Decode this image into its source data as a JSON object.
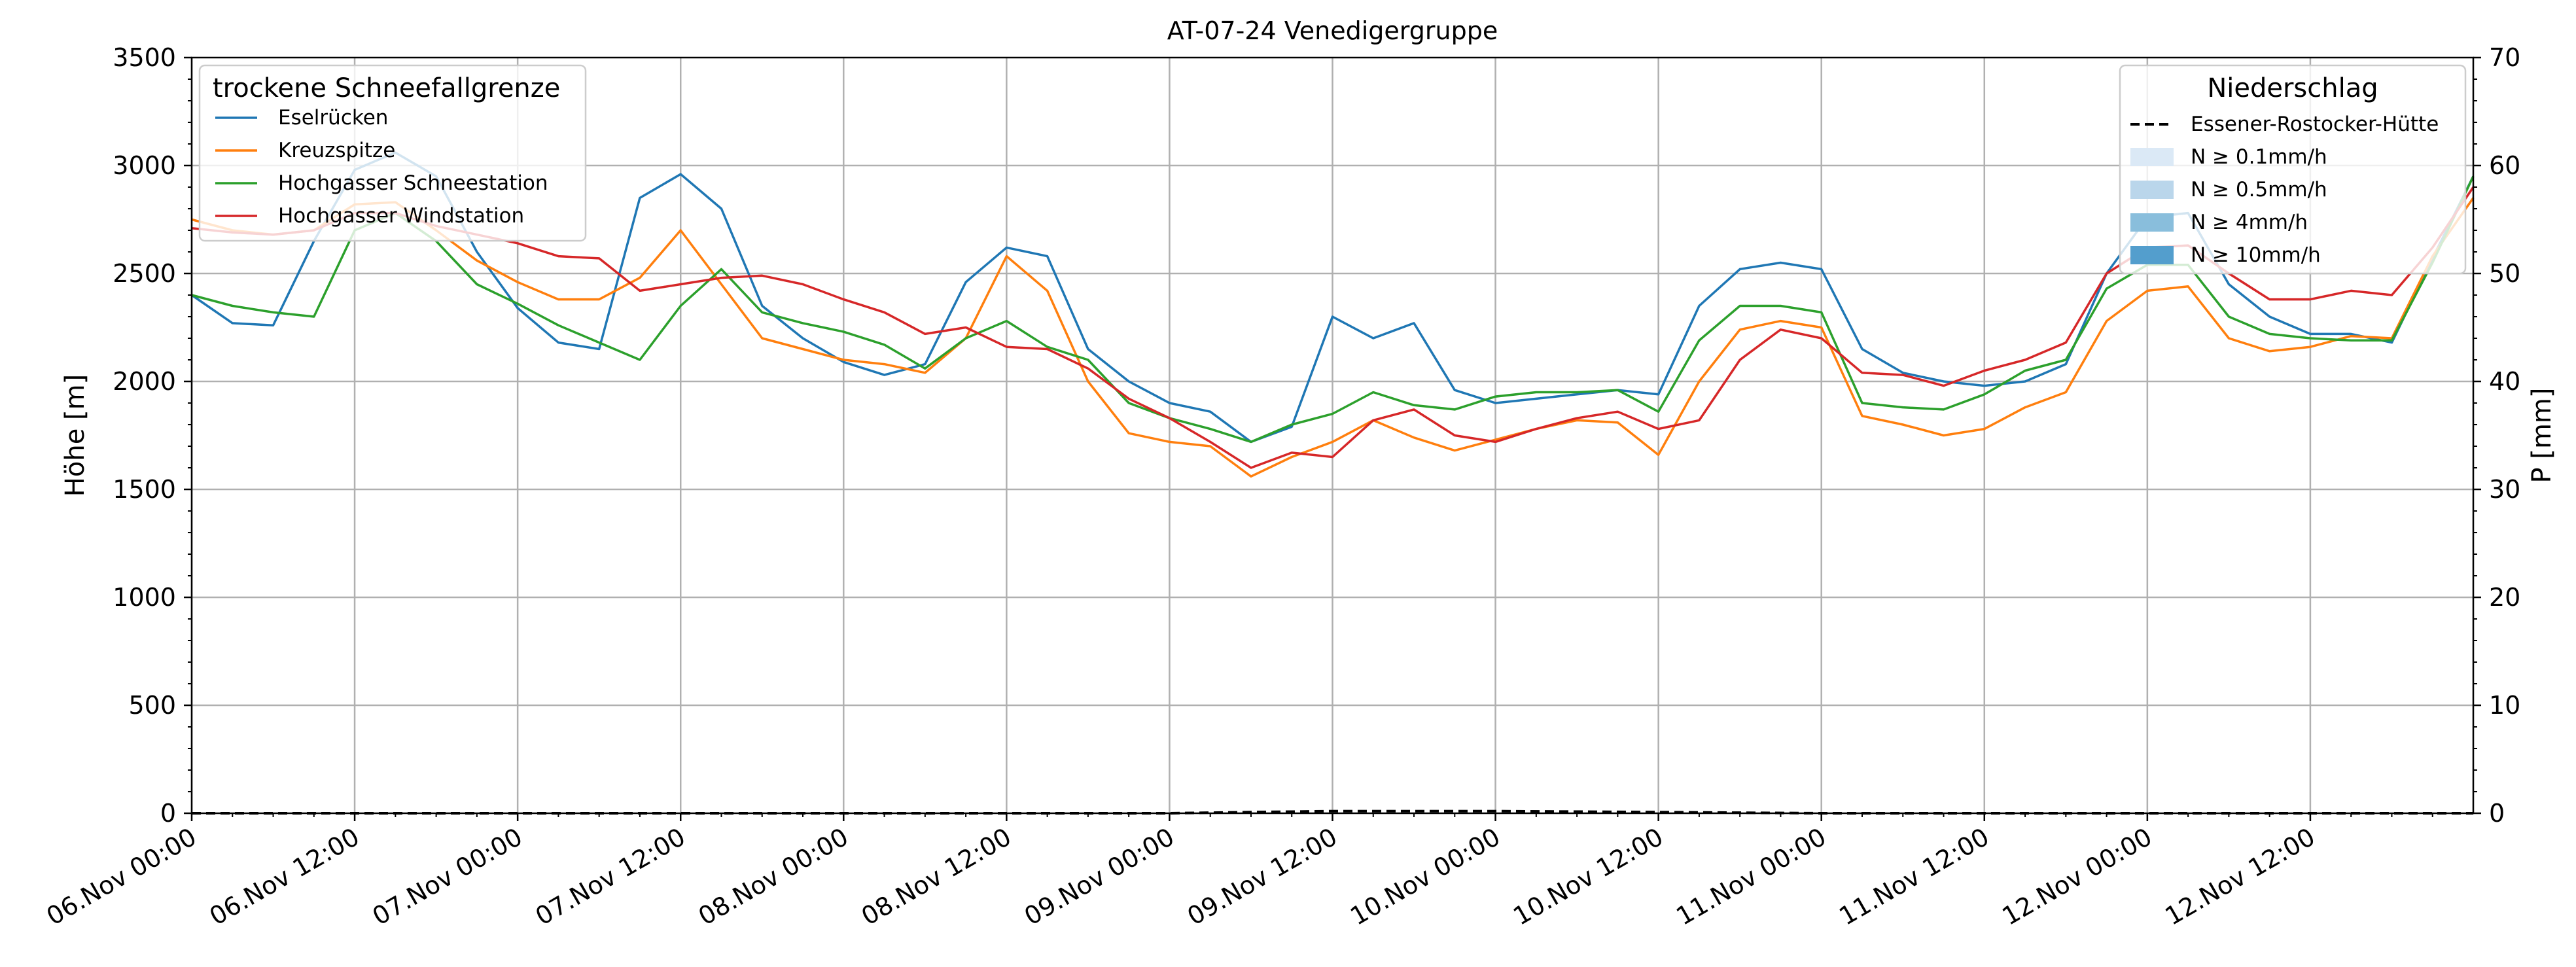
{
  "chart_data": {
    "type": "line",
    "title": "AT-07-24 Venedigergruppe",
    "ylabel": "Höhe [m]",
    "y2label": "P [mm]",
    "ylim": [
      0,
      3500
    ],
    "y2lim": [
      0,
      70
    ],
    "xlim": [
      "2024-11-06T00:00",
      "2024-11-13T00:00"
    ],
    "yticks": [
      0,
      500,
      1000,
      1500,
      2000,
      2500,
      3000,
      3500
    ],
    "y2ticks": [
      0,
      10,
      20,
      30,
      40,
      50,
      60,
      70
    ],
    "xticks": [
      {
        "at": "2024-11-06T00:00",
        "label": "06.Nov 00:00"
      },
      {
        "at": "2024-11-06T12:00",
        "label": "06.Nov 12:00"
      },
      {
        "at": "2024-11-07T00:00",
        "label": "07.Nov 00:00"
      },
      {
        "at": "2024-11-07T12:00",
        "label": "07.Nov 12:00"
      },
      {
        "at": "2024-11-08T00:00",
        "label": "08.Nov 00:00"
      },
      {
        "at": "2024-11-08T12:00",
        "label": "08.Nov 12:00"
      },
      {
        "at": "2024-11-09T00:00",
        "label": "09.Nov 00:00"
      },
      {
        "at": "2024-11-09T12:00",
        "label": "09.Nov 12:00"
      },
      {
        "at": "2024-11-10T00:00",
        "label": "10.Nov 00:00"
      },
      {
        "at": "2024-11-10T12:00",
        "label": "10.Nov 12:00"
      },
      {
        "at": "2024-11-11T00:00",
        "label": "11.Nov 00:00"
      },
      {
        "at": "2024-11-11T12:00",
        "label": "11.Nov 12:00"
      },
      {
        "at": "2024-11-12T00:00",
        "label": "12.Nov 00:00"
      },
      {
        "at": "2024-11-12T12:00",
        "label": "12.Nov 12:00"
      }
    ],
    "grid": true,
    "legend_left": {
      "title": "trockene Schneefallgrenze",
      "placement": "top-left"
    },
    "legend_right": {
      "title": "Niederschlag",
      "placement": "top-right",
      "items": [
        {
          "label": "Essener-Rostocker-Hütte",
          "style": "dashed-line",
          "color": "#000000"
        },
        {
          "label": "N ≥ 0.1mm/h",
          "style": "patch",
          "color": "#dbe9f6"
        },
        {
          "label": "N ≥ 0.5mm/h",
          "style": "patch",
          "color": "#bad6eb"
        },
        {
          "label": "N ≥ 4mm/h",
          "style": "patch",
          "color": "#89bedc"
        },
        {
          "label": "N ≥ 10mm/h",
          "style": "patch",
          "color": "#539ecd"
        }
      ]
    },
    "series": [
      {
        "name": "Eselrücken",
        "color": "#1f77b4",
        "x": [
          "2024-11-06T00:00",
          "2024-11-06T03:00",
          "2024-11-06T06:00",
          "2024-11-06T09:00",
          "2024-11-06T12:00",
          "2024-11-06T15:00",
          "2024-11-06T18:00",
          "2024-11-06T21:00",
          "2024-11-07T00:00",
          "2024-11-07T03:00",
          "2024-11-07T06:00",
          "2024-11-07T09:00",
          "2024-11-07T12:00",
          "2024-11-07T15:00",
          "2024-11-07T18:00",
          "2024-11-07T21:00",
          "2024-11-08T00:00",
          "2024-11-08T03:00",
          "2024-11-08T06:00",
          "2024-11-08T09:00",
          "2024-11-08T12:00",
          "2024-11-08T15:00",
          "2024-11-08T18:00",
          "2024-11-08T21:00",
          "2024-11-09T00:00",
          "2024-11-09T03:00",
          "2024-11-09T06:00",
          "2024-11-09T09:00",
          "2024-11-09T12:00",
          "2024-11-09T15:00",
          "2024-11-09T18:00",
          "2024-11-09T21:00",
          "2024-11-10T00:00",
          "2024-11-10T03:00",
          "2024-11-10T06:00",
          "2024-11-10T09:00",
          "2024-11-10T12:00",
          "2024-11-10T15:00",
          "2024-11-10T18:00",
          "2024-11-10T21:00",
          "2024-11-11T00:00",
          "2024-11-11T03:00",
          "2024-11-11T06:00",
          "2024-11-11T09:00",
          "2024-11-11T12:00",
          "2024-11-11T15:00",
          "2024-11-11T18:00",
          "2024-11-11T21:00",
          "2024-11-12T00:00",
          "2024-11-12T03:00",
          "2024-11-12T06:00",
          "2024-11-12T09:00",
          "2024-11-12T12:00",
          "2024-11-12T15:00",
          "2024-11-12T18:00",
          "2024-11-12T21:00",
          "2024-11-13T00:00"
        ],
        "values": [
          2400,
          2270,
          2260,
          2650,
          2980,
          3060,
          2950,
          2600,
          2340,
          2180,
          2150,
          2850,
          2960,
          2800,
          2350,
          2200,
          2090,
          2030,
          2080,
          2460,
          2620,
          2580,
          2150,
          2000,
          1900,
          1860,
          1720,
          1790,
          2300,
          2200,
          2270,
          1960,
          1900,
          1920,
          1940,
          1960,
          1940,
          2350,
          2520,
          2550,
          2520,
          2150,
          2040,
          2000,
          1980,
          2000,
          2080,
          2500,
          2760,
          2780,
          2450,
          2300,
          2220,
          2220,
          2180,
          2570,
          2950
        ]
      },
      {
        "name": "Kreuzspitze",
        "color": "#ff7f0e",
        "x": [
          "2024-11-06T00:00",
          "2024-11-06T03:00",
          "2024-11-06T06:00",
          "2024-11-06T09:00",
          "2024-11-06T12:00",
          "2024-11-06T15:00",
          "2024-11-06T18:00",
          "2024-11-06T21:00",
          "2024-11-07T00:00",
          "2024-11-07T03:00",
          "2024-11-07T06:00",
          "2024-11-07T09:00",
          "2024-11-07T12:00",
          "2024-11-07T15:00",
          "2024-11-07T18:00",
          "2024-11-07T21:00",
          "2024-11-08T00:00",
          "2024-11-08T03:00",
          "2024-11-08T06:00",
          "2024-11-08T09:00",
          "2024-11-08T12:00",
          "2024-11-08T15:00",
          "2024-11-08T18:00",
          "2024-11-08T21:00",
          "2024-11-09T00:00",
          "2024-11-09T03:00",
          "2024-11-09T06:00",
          "2024-11-09T09:00",
          "2024-11-09T12:00",
          "2024-11-09T15:00",
          "2024-11-09T18:00",
          "2024-11-09T21:00",
          "2024-11-10T00:00",
          "2024-11-10T03:00",
          "2024-11-10T06:00",
          "2024-11-10T09:00",
          "2024-11-10T12:00",
          "2024-11-10T15:00",
          "2024-11-10T18:00",
          "2024-11-10T21:00",
          "2024-11-11T00:00",
          "2024-11-11T03:00",
          "2024-11-11T06:00",
          "2024-11-11T09:00",
          "2024-11-11T12:00",
          "2024-11-11T15:00",
          "2024-11-11T18:00",
          "2024-11-11T21:00",
          "2024-11-12T00:00",
          "2024-11-12T03:00",
          "2024-11-12T06:00",
          "2024-11-12T09:00",
          "2024-11-12T12:00",
          "2024-11-12T15:00",
          "2024-11-12T18:00",
          "2024-11-12T21:00",
          "2024-11-13T00:00"
        ],
        "values": [
          2750,
          2700,
          2680,
          2700,
          2820,
          2830,
          2700,
          2560,
          2460,
          2380,
          2380,
          2480,
          2700,
          2450,
          2200,
          2150,
          2100,
          2080,
          2040,
          2200,
          2580,
          2420,
          2000,
          1760,
          1720,
          1700,
          1560,
          1650,
          1720,
          1820,
          1740,
          1680,
          1730,
          1780,
          1820,
          1810,
          1660,
          2000,
          2240,
          2280,
          2250,
          1840,
          1800,
          1750,
          1780,
          1880,
          1950,
          2280,
          2420,
          2440,
          2200,
          2140,
          2160,
          2210,
          2200,
          2580,
          2850
        ]
      },
      {
        "name": "Hochgasser Schneestation",
        "color": "#2ca02c",
        "x": [
          "2024-11-06T00:00",
          "2024-11-06T03:00",
          "2024-11-06T06:00",
          "2024-11-06T09:00",
          "2024-11-06T12:00",
          "2024-11-06T15:00",
          "2024-11-06T18:00",
          "2024-11-06T21:00",
          "2024-11-07T00:00",
          "2024-11-07T03:00",
          "2024-11-07T06:00",
          "2024-11-07T09:00",
          "2024-11-07T12:00",
          "2024-11-07T15:00",
          "2024-11-07T18:00",
          "2024-11-07T21:00",
          "2024-11-08T00:00",
          "2024-11-08T03:00",
          "2024-11-08T06:00",
          "2024-11-08T09:00",
          "2024-11-08T12:00",
          "2024-11-08T15:00",
          "2024-11-08T18:00",
          "2024-11-08T21:00",
          "2024-11-09T00:00",
          "2024-11-09T03:00",
          "2024-11-09T06:00",
          "2024-11-09T09:00",
          "2024-11-09T12:00",
          "2024-11-09T15:00",
          "2024-11-09T18:00",
          "2024-11-09T21:00",
          "2024-11-10T00:00",
          "2024-11-10T03:00",
          "2024-11-10T06:00",
          "2024-11-10T09:00",
          "2024-11-10T12:00",
          "2024-11-10T15:00",
          "2024-11-10T18:00",
          "2024-11-10T21:00",
          "2024-11-11T00:00",
          "2024-11-11T03:00",
          "2024-11-11T06:00",
          "2024-11-11T09:00",
          "2024-11-11T12:00",
          "2024-11-11T15:00",
          "2024-11-11T18:00",
          "2024-11-11T21:00",
          "2024-11-12T00:00",
          "2024-11-12T03:00",
          "2024-11-12T06:00",
          "2024-11-12T09:00",
          "2024-11-12T12:00",
          "2024-11-12T15:00",
          "2024-11-12T18:00",
          "2024-11-12T21:00",
          "2024-11-13T00:00"
        ],
        "values": [
          2400,
          2350,
          2320,
          2300,
          2700,
          2780,
          2650,
          2450,
          2360,
          2260,
          2180,
          2100,
          2350,
          2520,
          2320,
          2270,
          2230,
          2170,
          2060,
          2200,
          2280,
          2160,
          2100,
          1900,
          1830,
          1780,
          1720,
          1800,
          1850,
          1950,
          1890,
          1870,
          1930,
          1950,
          1950,
          1960,
          1860,
          2190,
          2350,
          2350,
          2320,
          1900,
          1880,
          1870,
          1940,
          2050,
          2100,
          2430,
          2540,
          2540,
          2300,
          2220,
          2200,
          2190,
          2190,
          2550,
          2950
        ]
      },
      {
        "name": "Hochgasser Windstation",
        "color": "#d62728",
        "x": [
          "2024-11-06T00:00",
          "2024-11-06T03:00",
          "2024-11-06T06:00",
          "2024-11-06T09:00",
          "2024-11-06T12:00",
          "2024-11-06T15:00",
          "2024-11-06T18:00",
          "2024-11-06T21:00",
          "2024-11-07T00:00",
          "2024-11-07T03:00",
          "2024-11-07T06:00",
          "2024-11-07T09:00",
          "2024-11-07T12:00",
          "2024-11-07T15:00",
          "2024-11-07T18:00",
          "2024-11-07T21:00",
          "2024-11-08T00:00",
          "2024-11-08T03:00",
          "2024-11-08T06:00",
          "2024-11-08T09:00",
          "2024-11-08T12:00",
          "2024-11-08T15:00",
          "2024-11-08T18:00",
          "2024-11-08T21:00",
          "2024-11-09T00:00",
          "2024-11-09T03:00",
          "2024-11-09T06:00",
          "2024-11-09T09:00",
          "2024-11-09T12:00",
          "2024-11-09T15:00",
          "2024-11-09T18:00",
          "2024-11-09T21:00",
          "2024-11-10T00:00",
          "2024-11-10T03:00",
          "2024-11-10T06:00",
          "2024-11-10T09:00",
          "2024-11-10T12:00",
          "2024-11-10T15:00",
          "2024-11-10T18:00",
          "2024-11-10T21:00",
          "2024-11-11T00:00",
          "2024-11-11T03:00",
          "2024-11-11T06:00",
          "2024-11-11T09:00",
          "2024-11-11T12:00",
          "2024-11-11T15:00",
          "2024-11-11T18:00",
          "2024-11-11T21:00",
          "2024-11-12T00:00",
          "2024-11-12T03:00",
          "2024-11-12T06:00",
          "2024-11-12T09:00",
          "2024-11-12T12:00",
          "2024-11-12T15:00",
          "2024-11-12T18:00",
          "2024-11-12T21:00",
          "2024-11-13T00:00"
        ],
        "values": [
          2710,
          2690,
          2680,
          2700,
          2780,
          2780,
          2720,
          2680,
          2640,
          2580,
          2570,
          2420,
          2450,
          2480,
          2490,
          2450,
          2380,
          2320,
          2220,
          2250,
          2160,
          2150,
          2060,
          1920,
          1830,
          1720,
          1600,
          1670,
          1650,
          1820,
          1870,
          1750,
          1720,
          1780,
          1830,
          1860,
          1780,
          1820,
          2100,
          2240,
          2200,
          2040,
          2030,
          1980,
          2050,
          2100,
          2180,
          2500,
          2620,
          2630,
          2500,
          2380,
          2380,
          2420,
          2400,
          2620,
          2900
        ]
      }
    ],
    "precip_series": [
      {
        "name": "Essener-Rostocker-Hütte",
        "color": "#000000",
        "style": "dashed",
        "x": [
          "2024-11-06T00:00",
          "2024-11-09T00:00",
          "2024-11-09T06:00",
          "2024-11-09T12:00",
          "2024-11-10T00:00",
          "2024-11-10T12:00",
          "2024-11-11T00:00",
          "2024-11-13T00:00"
        ],
        "values": [
          0,
          0,
          0.1,
          0.2,
          0.2,
          0.1,
          0,
          0
        ]
      }
    ]
  }
}
